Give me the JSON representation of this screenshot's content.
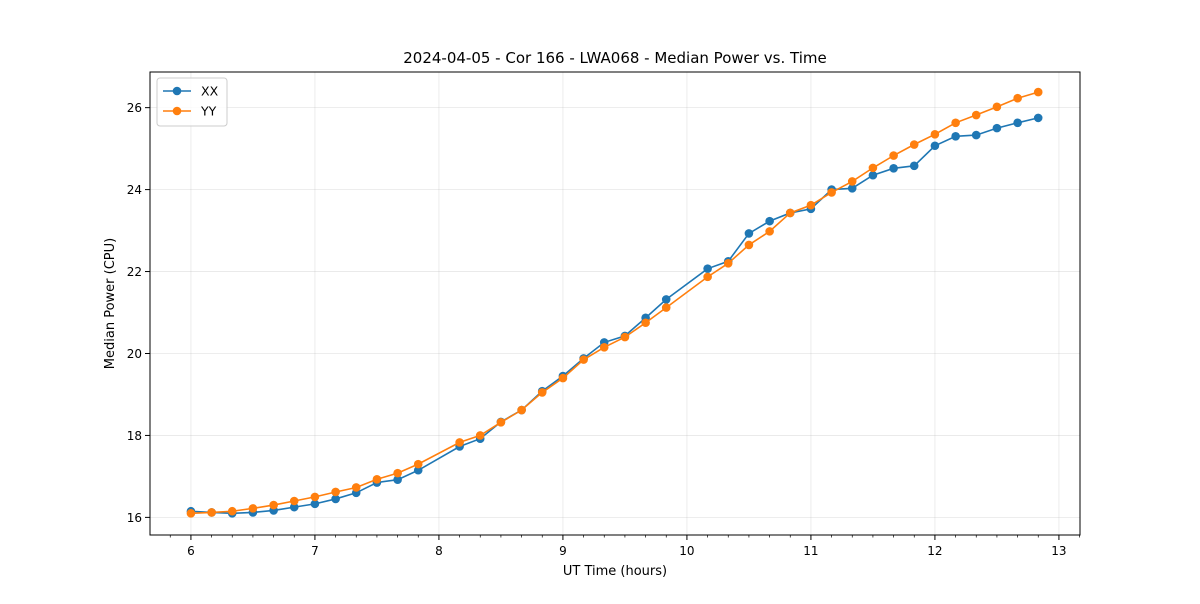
{
  "chart_data": {
    "type": "line",
    "title": "2024-04-05 - Cor 166 - LWA068 - Median Power vs. Time",
    "xlabel": "UT Time (hours)",
    "ylabel": "Median Power (CPU)",
    "xlim": [
      5.67,
      13.17
    ],
    "ylim": [
      15.57,
      26.87
    ],
    "x_ticks": [
      6,
      7,
      8,
      9,
      10,
      11,
      12,
      13
    ],
    "y_ticks": [
      16,
      18,
      20,
      22,
      24,
      26
    ],
    "grid": true,
    "legend_position": "top-left",
    "series": [
      {
        "name": "XX",
        "color": "#1f77b4",
        "x": [
          6.0,
          6.167,
          6.333,
          6.5,
          6.667,
          6.833,
          7.0,
          7.167,
          7.333,
          7.5,
          7.667,
          7.833,
          8.167,
          8.333,
          8.5,
          8.667,
          8.833,
          9.0,
          9.167,
          9.333,
          9.5,
          9.667,
          9.833,
          10.167,
          10.333,
          10.5,
          10.667,
          10.833,
          11.0,
          11.167,
          11.333,
          11.5,
          11.667,
          11.833,
          12.0,
          12.167,
          12.333,
          12.5,
          12.667,
          12.833
        ],
        "values": [
          16.15,
          16.12,
          16.1,
          16.12,
          16.17,
          16.25,
          16.33,
          16.45,
          16.6,
          16.85,
          16.92,
          17.15,
          17.73,
          17.92,
          18.33,
          18.62,
          19.08,
          19.45,
          19.88,
          20.27,
          20.43,
          20.87,
          21.32,
          22.07,
          22.25,
          22.93,
          23.23,
          23.43,
          23.53,
          24.0,
          24.03,
          24.35,
          24.52,
          24.58,
          25.07,
          25.3,
          25.33,
          25.5,
          25.63,
          25.75
        ]
      },
      {
        "name": "YY",
        "color": "#ff7f0e",
        "x": [
          6.0,
          6.167,
          6.333,
          6.5,
          6.667,
          6.833,
          7.0,
          7.167,
          7.333,
          7.5,
          7.667,
          7.833,
          8.167,
          8.333,
          8.5,
          8.667,
          8.833,
          9.0,
          9.167,
          9.333,
          9.5,
          9.667,
          9.833,
          10.167,
          10.333,
          10.5,
          10.667,
          10.833,
          11.0,
          11.167,
          11.333,
          11.5,
          11.667,
          11.833,
          12.0,
          12.167,
          12.333,
          12.5,
          12.667,
          12.833
        ],
        "values": [
          16.1,
          16.12,
          16.15,
          16.22,
          16.3,
          16.4,
          16.5,
          16.62,
          16.73,
          16.93,
          17.08,
          17.3,
          17.83,
          18.0,
          18.32,
          18.62,
          19.05,
          19.4,
          19.85,
          20.15,
          20.4,
          20.75,
          21.12,
          21.87,
          22.2,
          22.65,
          22.98,
          23.43,
          23.62,
          23.93,
          24.2,
          24.53,
          24.83,
          25.1,
          25.35,
          25.63,
          25.82,
          26.02,
          26.23,
          26.38
        ]
      }
    ]
  }
}
